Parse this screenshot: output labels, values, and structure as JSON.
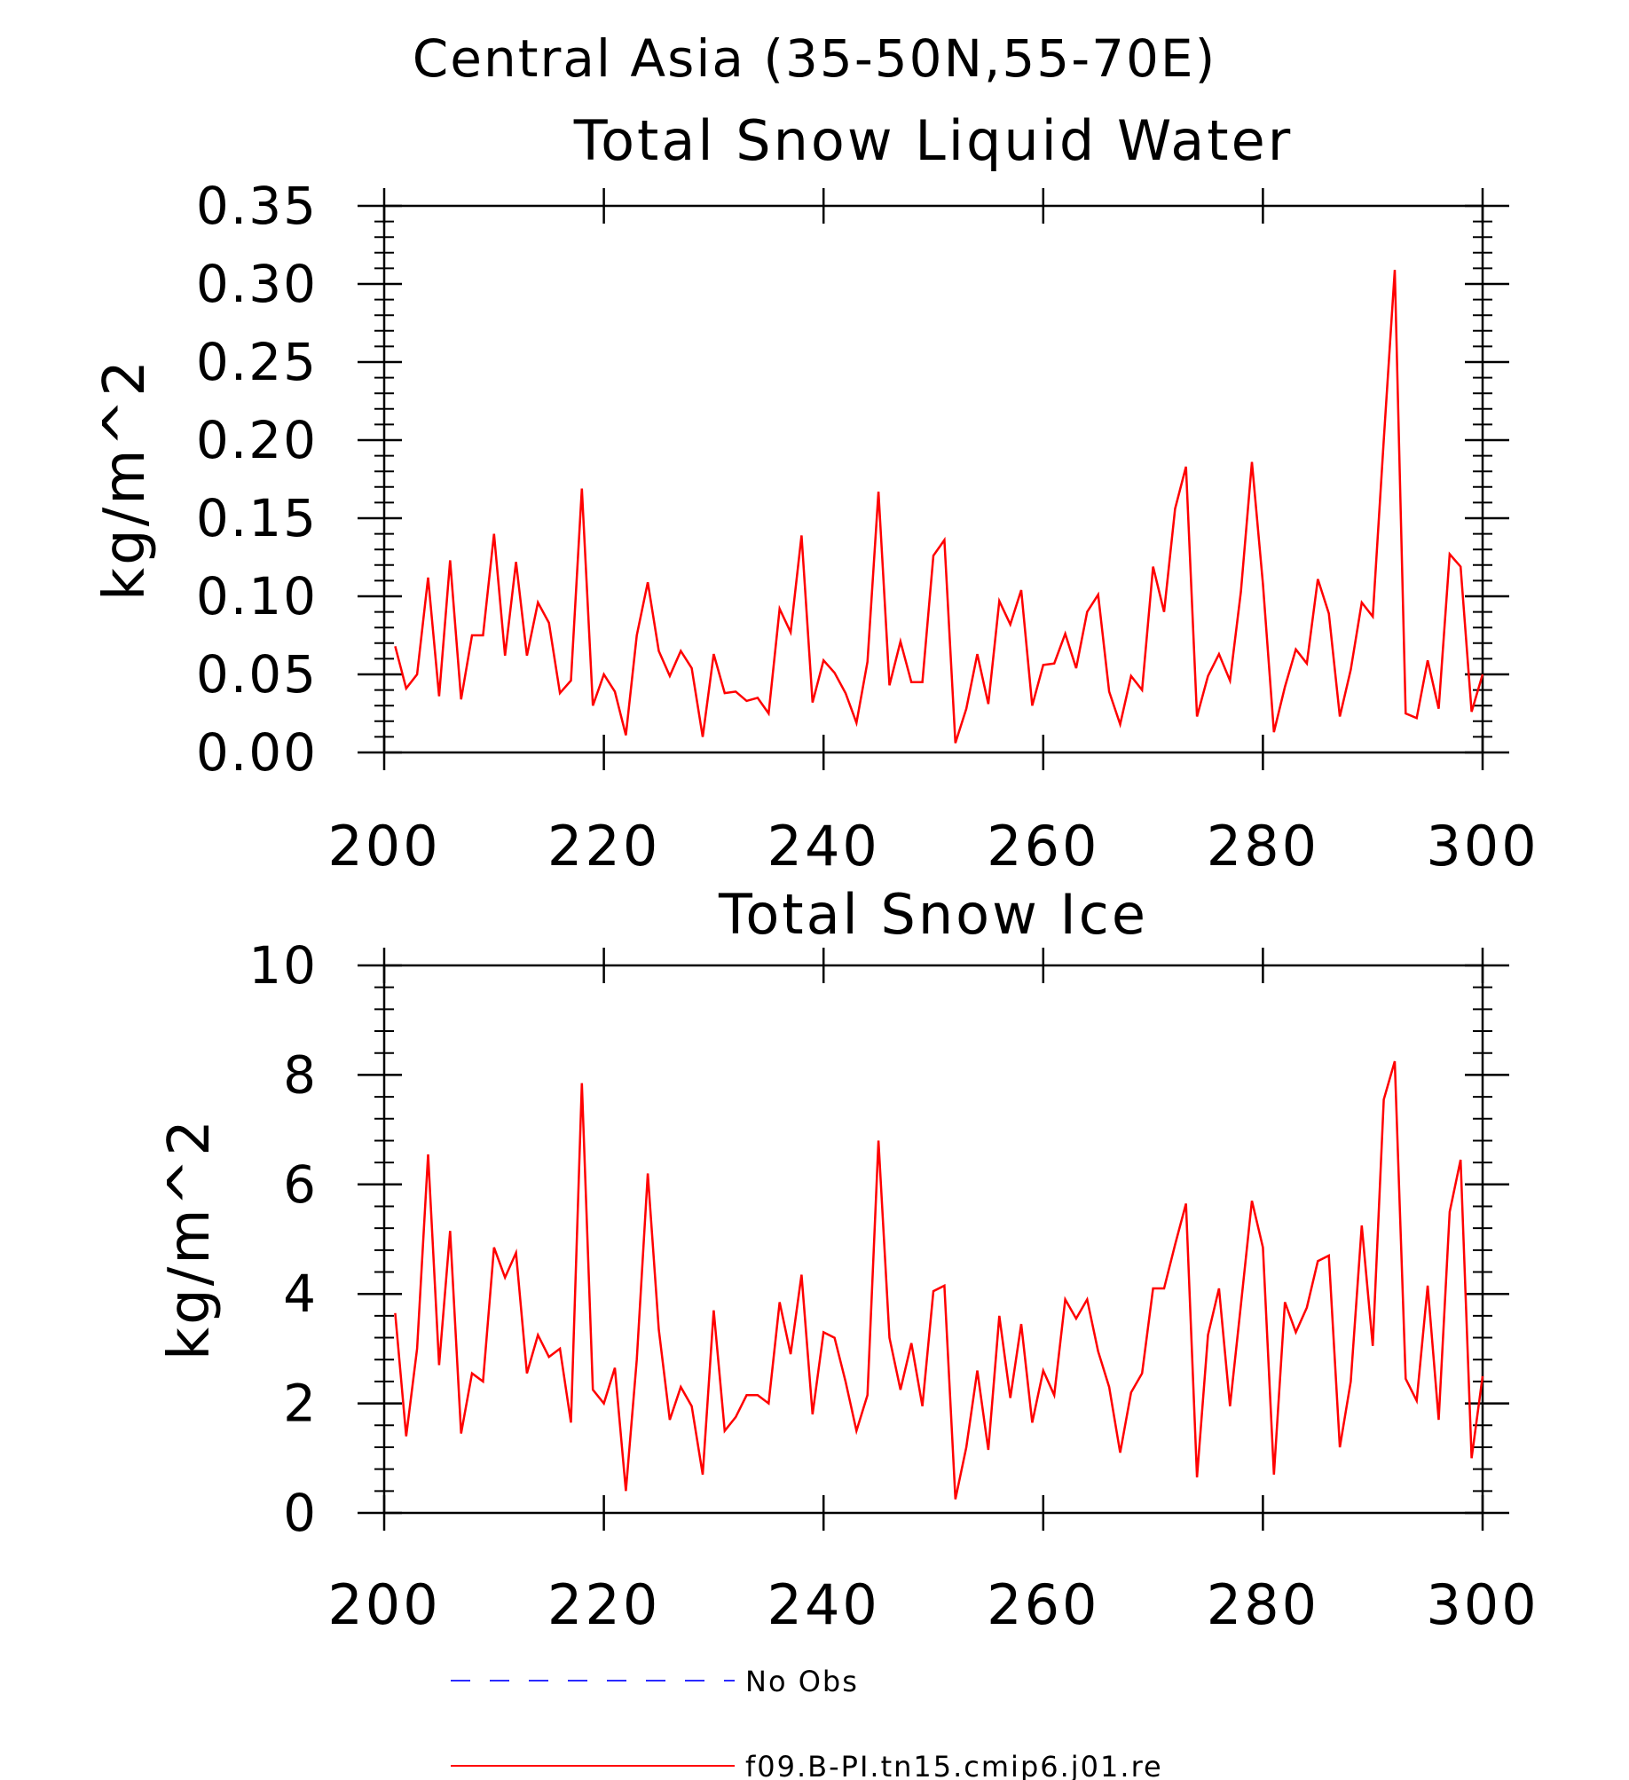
{
  "figure": {
    "suptitle": "Central Asia (35-50N,55-70E)"
  },
  "legend": {
    "placement": "bottom-center",
    "entries": [
      {
        "label": "No Obs",
        "color": "#2b2bff",
        "style": "dashed"
      },
      {
        "label": "f09.B-PI.tn15.cmip6.j01.re",
        "color": "#ff0000",
        "style": "solid"
      }
    ]
  },
  "chart_data": [
    {
      "type": "line",
      "title": "Total Snow Liquid Water",
      "xlabel": "",
      "ylabel": "kg/m^2",
      "xlim": [
        200,
        300
      ],
      "ylim": [
        0,
        0.35
      ],
      "xticks": [
        "200",
        "220",
        "240",
        "260",
        "280",
        "300"
      ],
      "yticks": [
        "0.00",
        "0.05",
        "0.10",
        "0.15",
        "0.20",
        "0.25",
        "0.30",
        "0.35"
      ],
      "grid": false,
      "x_start": 201,
      "x_step": 1,
      "series": [
        {
          "name": "f09.B-PI.tn15.cmip6.j01.re",
          "color": "#ff0000",
          "values": [
            0.068,
            0.041,
            0.05,
            0.112,
            0.036,
            0.123,
            0.034,
            0.075,
            0.075,
            0.14,
            0.062,
            0.122,
            0.062,
            0.096,
            0.083,
            0.038,
            0.046,
            0.169,
            0.03,
            0.05,
            0.039,
            0.011,
            0.075,
            0.109,
            0.065,
            0.049,
            0.065,
            0.054,
            0.01,
            0.063,
            0.038,
            0.039,
            0.033,
            0.035,
            0.025,
            0.092,
            0.077,
            0.139,
            0.032,
            0.059,
            0.051,
            0.038,
            0.019,
            0.058,
            0.167,
            0.043,
            0.071,
            0.045,
            0.045,
            0.126,
            0.136,
            0.006,
            0.028,
            0.063,
            0.031,
            0.097,
            0.082,
            0.104,
            0.03,
            0.056,
            0.057,
            0.076,
            0.054,
            0.09,
            0.101,
            0.039,
            0.018,
            0.049,
            0.04,
            0.119,
            0.09,
            0.156,
            0.183,
            0.023,
            0.049,
            0.063,
            0.046,
            0.103,
            0.186,
            0.108,
            0.013,
            0.042,
            0.066,
            0.057,
            0.111,
            0.089,
            0.023,
            0.053,
            0.096,
            0.087,
            0.2,
            0.309,
            0.025,
            0.022,
            0.059,
            0.028,
            0.127,
            0.119,
            0.026,
            0.05
          ]
        }
      ]
    },
    {
      "type": "line",
      "title": "Total Snow Ice",
      "xlabel": "",
      "ylabel": "kg/m^2",
      "xlim": [
        200,
        300
      ],
      "ylim": [
        0,
        10
      ],
      "xticks": [
        "200",
        "220",
        "240",
        "260",
        "280",
        "300"
      ],
      "yticks": [
        "0",
        "2",
        "4",
        "6",
        "8",
        "10"
      ],
      "grid": false,
      "x_start": 201,
      "x_step": 1,
      "series": [
        {
          "name": "f09.B-PI.tn15.cmip6.j01.re",
          "color": "#ff0000",
          "values": [
            3.65,
            1.4,
            3.0,
            6.55,
            2.7,
            5.15,
            1.45,
            2.55,
            2.4,
            4.85,
            4.3,
            4.75,
            2.55,
            3.25,
            2.85,
            3.0,
            1.65,
            7.85,
            2.25,
            2.0,
            2.65,
            0.4,
            2.8,
            6.2,
            3.35,
            1.7,
            2.3,
            1.95,
            0.7,
            3.7,
            1.5,
            1.75,
            2.15,
            2.15,
            2.0,
            3.85,
            2.9,
            4.35,
            1.8,
            3.3,
            3.2,
            2.4,
            1.5,
            2.15,
            6.8,
            3.2,
            2.25,
            3.1,
            1.95,
            4.05,
            4.15,
            0.25,
            1.2,
            2.6,
            1.15,
            3.6,
            2.1,
            3.45,
            1.65,
            2.6,
            2.15,
            3.9,
            3.55,
            3.9,
            2.95,
            2.3,
            1.1,
            2.2,
            2.55,
            4.1,
            4.1,
            4.9,
            5.65,
            0.65,
            3.25,
            4.1,
            1.95,
            3.8,
            5.7,
            4.85,
            0.7,
            3.85,
            3.3,
            3.75,
            4.6,
            4.7,
            1.2,
            2.4,
            5.25,
            3.05,
            7.55,
            8.25,
            2.45,
            2.05,
            4.15,
            1.7,
            5.5,
            6.45,
            1.0,
            2.5
          ]
        }
      ]
    }
  ]
}
